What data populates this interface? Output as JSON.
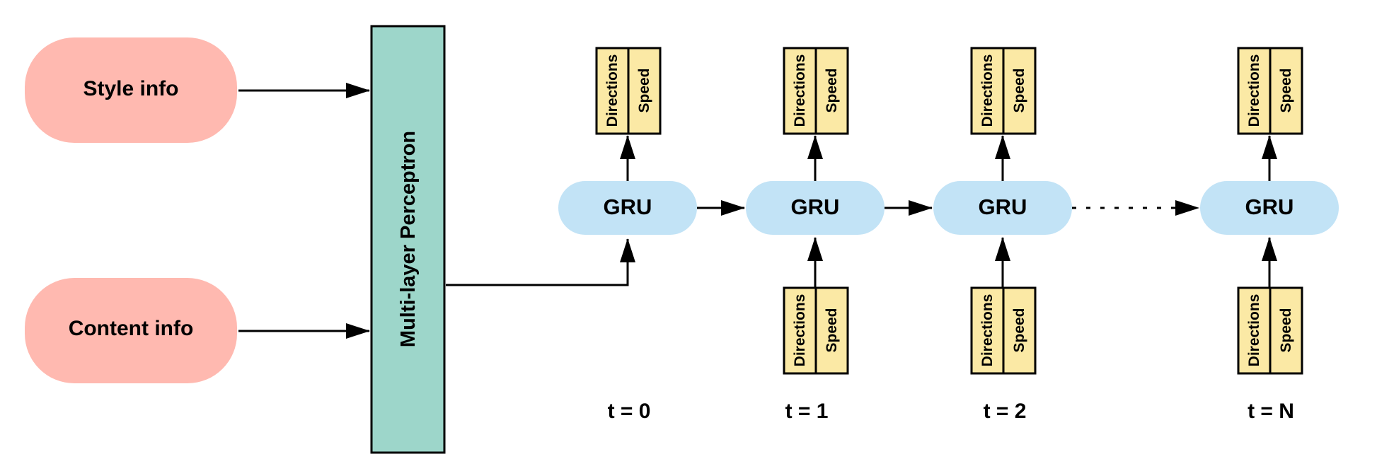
{
  "inputs": {
    "style_label": "Style info",
    "content_label": "Content info"
  },
  "mlp": {
    "label": "Multi-layer Perceptron"
  },
  "cell_label": "GRU",
  "output_labels": {
    "directions": "Directions",
    "speed": "Speed"
  },
  "timesteps": [
    "t = 0",
    "t = 1",
    "t = 2",
    "t = N"
  ],
  "colors": {
    "input_fill": "#FFB9B0",
    "mlp_fill": "#9DD6CA",
    "gru_fill": "#C2E3F6",
    "output_fill": "#FBE9A5",
    "stroke": "#000000"
  }
}
